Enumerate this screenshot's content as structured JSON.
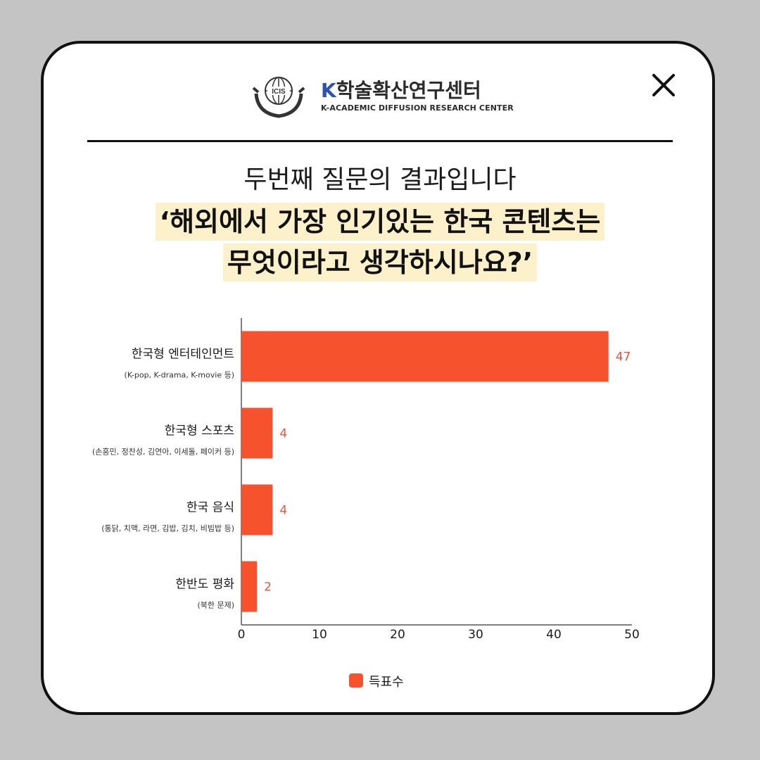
{
  "header": {
    "logo_badge": "ICIS",
    "logo_k": "K",
    "logo_title": "학술확산연구센터",
    "logo_subtitle": "K-ACADEMIC DIFFUSION RESEARCH CENTER",
    "close_icon": "close-icon"
  },
  "subtitle": "두번째 질문의 결과입니다",
  "question": {
    "line1": "‘해외에서 가장 인기있는 한국 콘텐츠는",
    "line2": "무엇이라고 생각하시나요?’"
  },
  "colors": {
    "bar": "#f5522d",
    "value_label": "#e2553b",
    "highlight": "#fdf1cc",
    "logo_blue": "#2f53a6"
  },
  "chart_data": {
    "type": "bar",
    "orientation": "horizontal",
    "categories": [
      "한국형 엔터테인먼트",
      "한국형 스포츠",
      "한국 음식",
      "한반도 평화"
    ],
    "category_notes": [
      "(K-pop, K-drama, K-movie 등)",
      "(손흥민, 정찬성, 김연아, 이세돌, 페이커 등)",
      "(통닭, 치맥, 라면, 김밥, 김치, 비빔밥 등)",
      "(북한 문제)"
    ],
    "series": [
      {
        "name": "득표수",
        "values": [
          47,
          4,
          4,
          2
        ]
      }
    ],
    "value_labels": [
      "47",
      "4",
      "4",
      "2"
    ],
    "xlim": [
      0,
      50
    ],
    "xticks": [
      "0",
      "10",
      "20",
      "30",
      "40",
      "50"
    ],
    "grid": false,
    "legend": {
      "position": "bottom",
      "entries": [
        "득표수"
      ]
    }
  }
}
